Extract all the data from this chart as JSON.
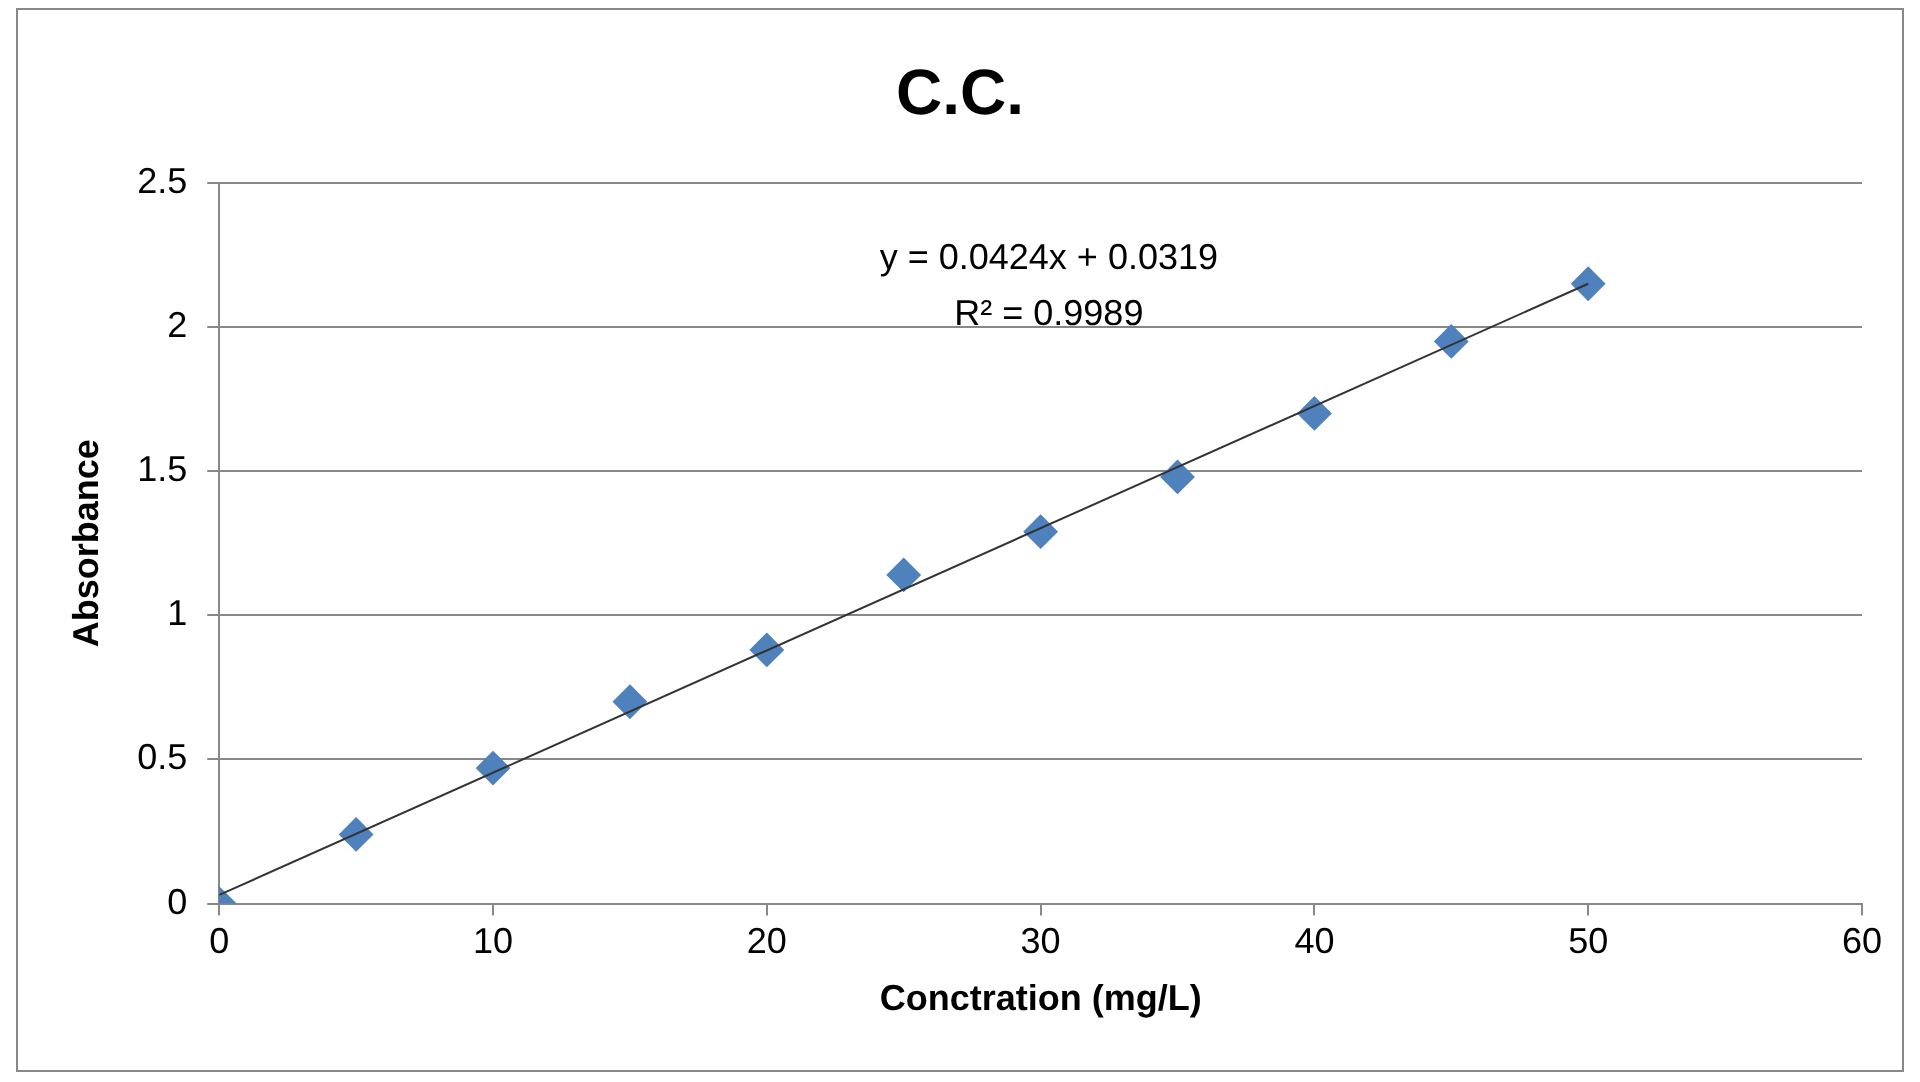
{
  "chart_data": {
    "type": "scatter",
    "title": "C.C.",
    "xlabel": "Conctration (mg/L)",
    "ylabel": "Absorbance",
    "xlim": [
      0,
      60
    ],
    "xticks": [
      0,
      10,
      20,
      30,
      40,
      50,
      60
    ],
    "ylim": [
      0,
      2.5
    ],
    "yticks": [
      0,
      0.5,
      1,
      1.5,
      2,
      2.5
    ],
    "grid": "y",
    "legend": false,
    "marker": "diamond",
    "annotations": [
      "y = 0.0424x + 0.0319",
      "R² = 0.9989"
    ],
    "series": [
      {
        "type": "scatter",
        "color": "#4f81bd",
        "x": [
          0,
          5,
          10,
          15,
          20,
          25,
          30,
          35,
          40,
          45,
          50
        ],
        "values": [
          0,
          0.24,
          0.47,
          0.7,
          0.88,
          1.14,
          1.29,
          1.48,
          1.7,
          1.95,
          2.15
        ]
      },
      {
        "type": "line",
        "color": "#333333",
        "x": [
          0,
          50
        ],
        "values": [
          0.03,
          2.15
        ],
        "marker": "none"
      }
    ]
  }
}
